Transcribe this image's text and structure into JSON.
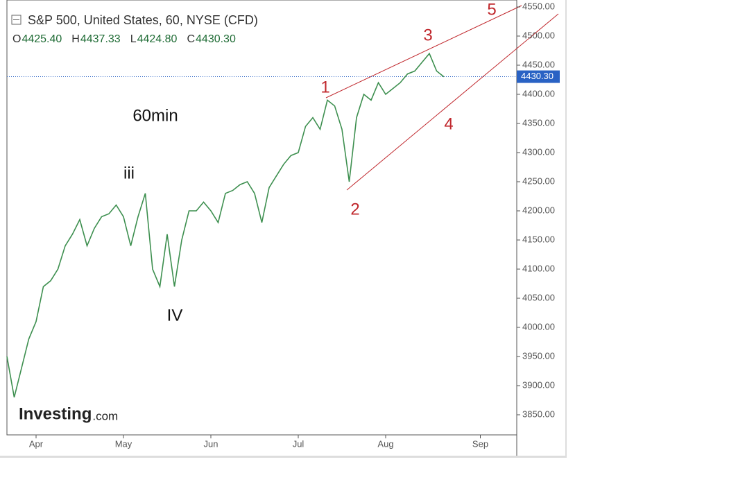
{
  "chart_data": {
    "type": "line",
    "title": "S&P 500, United States, 60, NYSE (CFD)",
    "ohlc": [
      {
        "label": "O",
        "value": "4425.40"
      },
      {
        "label": "H",
        "value": "4437.33"
      },
      {
        "label": "L",
        "value": "4424.80"
      },
      {
        "label": "C",
        "value": "4430.30"
      }
    ],
    "categories": [
      null,
      null,
      null,
      null,
      "Apr",
      null,
      null,
      null,
      null,
      null,
      null,
      null,
      null,
      null,
      null,
      null,
      "May",
      null,
      null,
      null,
      null,
      null,
      null,
      null,
      null,
      null,
      null,
      null,
      "Jun",
      null,
      null,
      null,
      null,
      null,
      null,
      null,
      null,
      null,
      null,
      null,
      "Jul",
      null,
      null,
      null,
      null,
      null,
      null,
      null,
      null,
      null,
      null,
      null,
      "Aug",
      null,
      null,
      null,
      null,
      null,
      null,
      null,
      null,
      null,
      null,
      null,
      null,
      "Sep"
    ],
    "series": [
      {
        "name": "S&P 500",
        "color": "#3d8f4f",
        "values": [
          3950,
          3880,
          3930,
          3980,
          4010,
          4070,
          4080,
          4100,
          4140,
          4160,
          4185,
          4140,
          4170,
          4190,
          4195,
          4210,
          4190,
          4140,
          4190,
          4230,
          4100,
          4070,
          4160,
          4070,
          4150,
          4200,
          4200,
          4215,
          4200,
          4180,
          4230,
          4235,
          4245,
          4250,
          4230,
          4180,
          4240,
          4260,
          4280,
          4295,
          4300,
          4345,
          4360,
          4340,
          4390,
          4380,
          4340,
          4250,
          4360,
          4400,
          4390,
          4420,
          4400,
          4410,
          4420,
          4435,
          4440,
          4455,
          4470,
          4440,
          4430,
          null,
          null,
          null,
          null,
          null
        ]
      }
    ],
    "last_price": {
      "value": 4430.3,
      "label": "4430.30"
    },
    "ylim": [
      3850,
      4550
    ],
    "yticks": [
      {
        "value": 3850,
        "label": "3850.00"
      },
      {
        "value": 3900,
        "label": "3900.00"
      },
      {
        "value": 3950,
        "label": "3950.00"
      },
      {
        "value": 4000,
        "label": "4000.00"
      },
      {
        "value": 4050,
        "label": "4050.00"
      },
      {
        "value": 4100,
        "label": "4100.00"
      },
      {
        "value": 4150,
        "label": "4150.00"
      },
      {
        "value": 4200,
        "label": "4200.00"
      },
      {
        "value": 4250,
        "label": "4250.00"
      },
      {
        "value": 4300,
        "label": "4300.00"
      },
      {
        "value": 4350,
        "label": "4350.00"
      },
      {
        "value": 4400,
        "label": "4400.00"
      },
      {
        "value": 4450,
        "label": "4450.00"
      },
      {
        "value": 4500,
        "label": "4500.00"
      },
      {
        "value": 4550,
        "label": "4550.00"
      }
    ],
    "annotations": [
      "60min",
      "iii",
      "IV",
      "1",
      "2",
      "3",
      "4",
      "5"
    ],
    "watermark": [
      "Investing",
      ".com"
    ]
  }
}
